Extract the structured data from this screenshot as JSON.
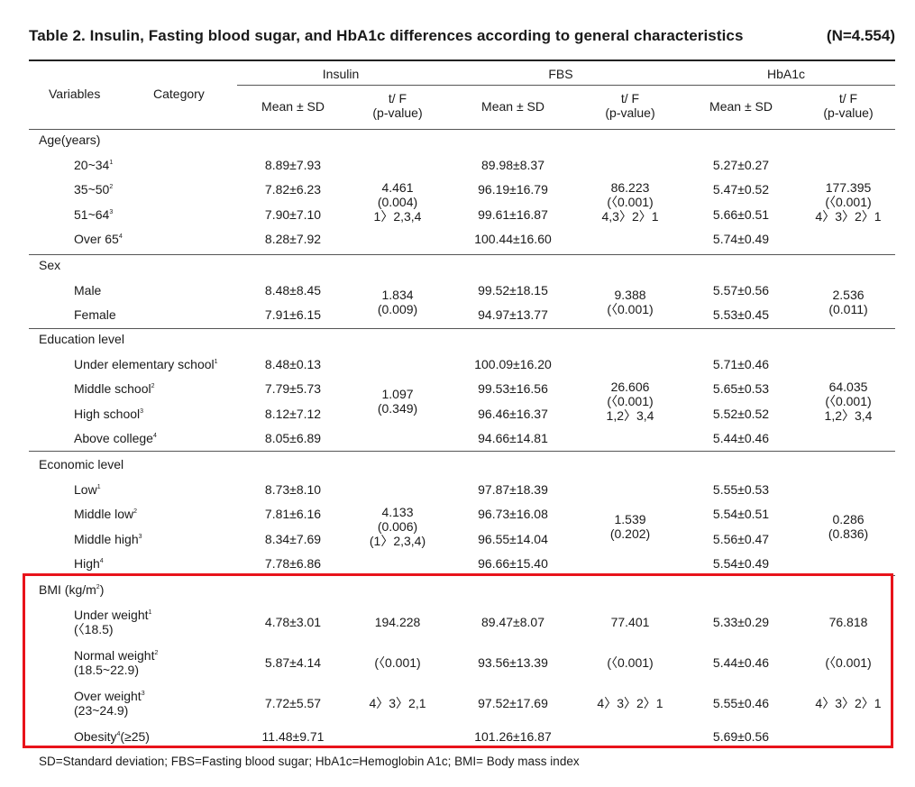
{
  "title": "Table 2. Insulin, Fasting blood sugar, and HbA1c differences according to general characteristics",
  "n": "(N=4.554)",
  "header": {
    "variables": "Variables",
    "category": "Category",
    "insulin": "Insulin",
    "fbs": "FBS",
    "hba1c": "HbA1c",
    "mean_sd": "Mean ± SD",
    "tf": "t/ F",
    "pvalue": "(p-value)"
  },
  "groups": [
    {
      "name": "Age(years)",
      "rows": [
        {
          "label": "20~34",
          "sup": "1",
          "ins": "8.89±7.93",
          "fbs": "89.98±8.37",
          "hba": "5.27±0.27"
        },
        {
          "label": "35~50",
          "sup": "2",
          "ins": "7.82±6.23",
          "fbs": "96.19±16.79",
          "hba": "5.47±0.52"
        },
        {
          "label": "51~64",
          "sup": "3",
          "ins": "7.90±7.10",
          "fbs": "99.61±16.87",
          "hba": "5.66±0.51"
        },
        {
          "label": "Over 65",
          "sup": "4",
          "ins": "8.28±7.92",
          "fbs": "100.44±16.60",
          "hba": "5.74±0.49"
        }
      ],
      "tests": {
        "ins": [
          "4.461",
          "(0.004)",
          "1〉2,3,4"
        ],
        "fbs": [
          "86.223",
          "(〈0.001)",
          "4,3〉2〉1"
        ],
        "hba": [
          "177.395",
          "(〈0.001)",
          "4〉3〉2〉1"
        ]
      }
    },
    {
      "name": "Sex",
      "rows": [
        {
          "label": "Male",
          "sup": "",
          "ins": "8.48±8.45",
          "fbs": "99.52±18.15",
          "hba": "5.57±0.56"
        },
        {
          "label": "Female",
          "sup": "",
          "ins": "7.91±6.15",
          "fbs": "94.97±13.77",
          "hba": "5.53±0.45"
        }
      ],
      "tests": {
        "ins": [
          "1.834",
          "(0.009)"
        ],
        "fbs": [
          "9.388",
          "(〈0.001)"
        ],
        "hba": [
          "2.536",
          "(0.011)"
        ]
      }
    },
    {
      "name": "Education level",
      "rows": [
        {
          "label": "Under elementary school",
          "sup": "1",
          "ins": "8.48±0.13",
          "fbs": "100.09±16.20",
          "hba": "5.71±0.46"
        },
        {
          "label": "Middle school",
          "sup": "2",
          "ins": "7.79±5.73",
          "fbs": "99.53±16.56",
          "hba": "5.65±0.53"
        },
        {
          "label": "High school",
          "sup": "3",
          "ins": "8.12±7.12",
          "fbs": "96.46±16.37",
          "hba": "5.52±0.52"
        },
        {
          "label": "Above college",
          "sup": "4",
          "ins": "8.05±6.89",
          "fbs": "94.66±14.81",
          "hba": "5.44±0.46"
        }
      ],
      "tests": {
        "ins": [
          "1.097",
          "(0.349)"
        ],
        "fbs": [
          "26.606",
          "(〈0.001)",
          "1,2〉3,4"
        ],
        "hba": [
          "64.035",
          "(〈0.001)",
          "1,2〉3,4"
        ]
      }
    },
    {
      "name": "Economic level",
      "rows": [
        {
          "label": "Low",
          "sup": "1",
          "ins": "8.73±8.10",
          "fbs": "97.87±18.39",
          "hba": "5.55±0.53"
        },
        {
          "label": "Middle low",
          "sup": "2",
          "ins": "7.81±6.16",
          "fbs": "96.73±16.08",
          "hba": "5.54±0.51"
        },
        {
          "label": "Middle high",
          "sup": "3",
          "ins": "8.34±7.69",
          "fbs": "96.55±14.04",
          "hba": "5.56±0.47"
        },
        {
          "label": "High",
          "sup": "4",
          "ins": "7.78±6.86",
          "fbs": "96.66±15.40",
          "hba": "5.54±0.49"
        }
      ],
      "tests": {
        "ins": [
          "4.133",
          "(0.006)",
          "(1〉2,3,4)"
        ],
        "fbs": [
          "1.539",
          "(0.202)"
        ],
        "hba": [
          "0.286",
          "(0.836)"
        ]
      }
    }
  ],
  "bmi": {
    "name": "BMI (kg/m",
    "name_sup": "2",
    "name_end": ")",
    "rows": [
      {
        "label": "Under weight",
        "sup": "1",
        "sub": "(〈18.5)",
        "ins": "4.78±3.01",
        "ins_t": "194.228",
        "fbs": "89.47±8.07",
        "fbs_t": "77.401",
        "hba": "5.33±0.29",
        "hba_t": "76.818"
      },
      {
        "label": "Normal weight",
        "sup": "2",
        "sub": "(18.5~22.9)",
        "ins": "5.87±4.14",
        "ins_t": "(〈0.001)",
        "fbs": "93.56±13.39",
        "fbs_t": "(〈0.001)",
        "hba": "5.44±0.46",
        "hba_t": "(〈0.001)"
      },
      {
        "label": "Over weight",
        "sup": "3",
        "sub": "(23~24.9)",
        "ins": "7.72±5.57",
        "ins_t": "4〉3〉2,1",
        "fbs": "97.52±17.69",
        "fbs_t": "4〉3〉2〉1",
        "hba": "5.55±0.46",
        "hba_t": "4〉3〉2〉1"
      },
      {
        "label": "Obesity",
        "sup": "4",
        "suffix": "(≥25)",
        "ins": "11.48±9.71",
        "ins_t": "",
        "fbs": "101.26±16.87",
        "fbs_t": "",
        "hba": "5.69±0.56",
        "hba_t": ""
      }
    ]
  },
  "footnote": "SD=Standard deviation; FBS=Fasting blood sugar; HbA1c=Hemoglobin A1c; BMI= Body mass index",
  "highlight_color": "#e8131b"
}
